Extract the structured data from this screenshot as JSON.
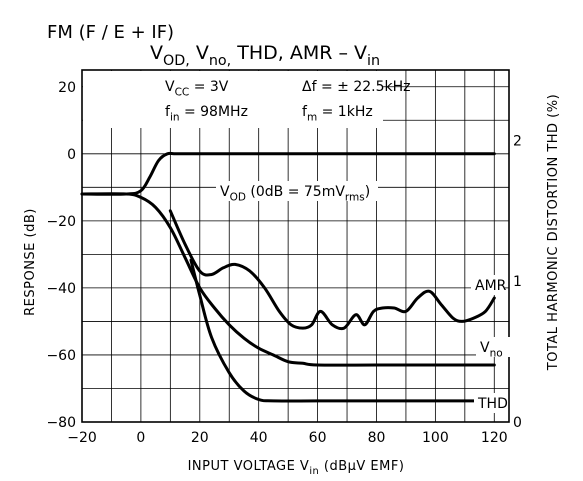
{
  "chart_data": {
    "type": "line",
    "supertitle": "FM (F / E + IF)",
    "title": "V_OD, V_no, THD, AMR – V_in",
    "conditions": [
      {
        "text": "V_CC = 3V"
      },
      {
        "text": "Δf = ± 22.5kHz"
      },
      {
        "text": "f_in = 98MHz"
      },
      {
        "text": "f_m = 1kHz"
      }
    ],
    "xlabel": "INPUT VOLTAGE   V_in   (dBμV EMF)",
    "ylabel": "RESPONSE   (dB)",
    "y2label": "TOTAL HARMONIC DISTORTION   THD   (%)",
    "xlim": [
      -20,
      125
    ],
    "ylim": [
      -80,
      25
    ],
    "y2lim": [
      0,
      2.5
    ],
    "xticks": [
      -20,
      0,
      20,
      40,
      60,
      80,
      100,
      120
    ],
    "yticks": [
      20,
      0,
      -20,
      -40,
      -60,
      -80
    ],
    "y2ticks": [
      2,
      1,
      0
    ],
    "grid": true,
    "series": [
      {
        "name": "V_OD (0dB = 75mV_rms)",
        "axis": "left",
        "x": [
          -20,
          -5,
          0,
          3,
          6,
          9,
          12,
          20,
          60,
          100,
          120
        ],
        "y": [
          -12,
          -12,
          -11,
          -7,
          -2,
          0,
          0,
          0,
          0,
          0,
          0
        ]
      },
      {
        "name": "AMR",
        "axis": "left",
        "x": [
          10,
          15,
          20,
          24,
          28,
          32,
          37,
          42,
          47,
          51,
          55,
          58,
          61,
          65,
          69,
          73,
          76,
          79,
          82,
          86,
          90,
          94,
          98,
          102,
          106,
          109,
          113,
          117,
          120
        ],
        "y": [
          -17,
          -27,
          -35,
          -36,
          -34,
          -33,
          -35,
          -40,
          -47,
          -51,
          -52,
          -51,
          -47,
          -51,
          -52,
          -48,
          -51,
          -47,
          -46,
          -46,
          -47,
          -43,
          -41,
          -45,
          -49,
          -50,
          -49,
          -47,
          -43
        ]
      },
      {
        "name": "V_no",
        "axis": "left",
        "x": [
          -20,
          -5,
          0,
          5,
          10,
          15,
          20,
          25,
          30,
          35,
          40,
          45,
          50,
          55,
          60,
          80,
          100,
          120
        ],
        "y": [
          -12,
          -12,
          -13,
          -16,
          -22,
          -31,
          -40,
          -46,
          -51,
          -55,
          -58,
          -60,
          -62,
          -62.5,
          -63,
          -63,
          -63,
          -63
        ]
      },
      {
        "name": "THD",
        "axis": "right",
        "x": [
          17,
          20,
          24,
          30,
          35,
          40,
          45,
          60,
          80,
          100,
          120
        ],
        "y": [
          1.15,
          0.9,
          0.6,
          0.35,
          0.22,
          0.16,
          0.15,
          0.15,
          0.15,
          0.15,
          0.15
        ]
      }
    ]
  }
}
